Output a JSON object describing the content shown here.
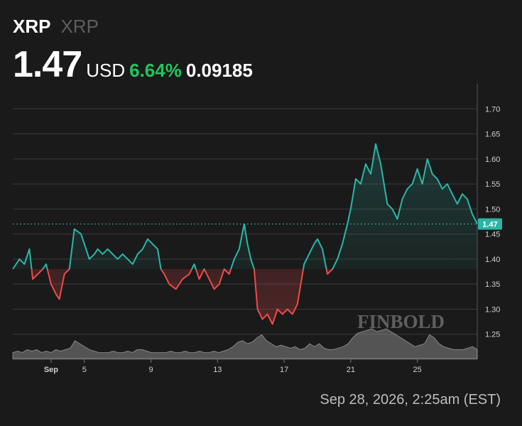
{
  "header": {
    "ticker": "XRP",
    "ticker_sub": "XRP",
    "price": "1.47",
    "currency": "USD",
    "change_pct": "6.64%",
    "change_abs": "0.09185"
  },
  "footer": {
    "timestamp": "Sep 28, 2026, 2:25am (EST)"
  },
  "watermark": {
    "text": "FINBOLD"
  },
  "colors": {
    "background": "#1a1a1a",
    "up": "#2bb5a8",
    "down": "#ef4a4a",
    "grid": "#3a3a3a",
    "volume": "#9b9b9b",
    "label_bg": "#2bb5a8"
  },
  "chart_data": {
    "type": "line",
    "title": "",
    "xlabel": "",
    "ylabel": "",
    "last_price_label": "1.47",
    "base_value": 1.38,
    "ylim": [
      1.2,
      1.75
    ],
    "y_ticks": [
      1.25,
      1.3,
      1.35,
      1.4,
      1.45,
      1.5,
      1.55,
      1.6,
      1.65,
      1.7
    ],
    "y_tick_labels": [
      "1.25",
      "1.30",
      "1.35",
      "1.40",
      "1.45",
      "1.50",
      "1.55",
      "1.60",
      "1.65",
      "1.70"
    ],
    "xlim": [
      0.7,
      28.6
    ],
    "x_ticks": [
      3,
      5,
      9,
      13,
      17,
      21,
      25
    ],
    "x_tick_labels": [
      "Sep",
      "5",
      "9",
      "13",
      "17",
      "21",
      "25"
    ],
    "series": [
      {
        "x": [
          0.7,
          1.1,
          1.4,
          1.7,
          1.9,
          2.2,
          2.5,
          2.7,
          3.0,
          3.3,
          3.5,
          3.8,
          4.1,
          4.4,
          4.8,
          5.0,
          5.3,
          5.6,
          5.8,
          6.1,
          6.4,
          6.7,
          7.0,
          7.3,
          7.6,
          7.9,
          8.2,
          8.5,
          8.8,
          9.1,
          9.4,
          9.6,
          9.8,
          10.1,
          10.5,
          10.9,
          11.3,
          11.6,
          11.9,
          12.2,
          12.5,
          12.8,
          13.1,
          13.4,
          13.7,
          14.0,
          14.3,
          14.6,
          14.8,
          15.0,
          15.2,
          15.4,
          15.7,
          16.0,
          16.3,
          16.6,
          16.9,
          17.2,
          17.5,
          17.8,
          18.0,
          18.2,
          18.5,
          18.8,
          19.0,
          19.3,
          19.6,
          19.9,
          20.2,
          20.5,
          20.8,
          21.0,
          21.3,
          21.6,
          21.9,
          22.2,
          22.5,
          22.8,
          23.0,
          23.2,
          23.5,
          23.8,
          24.1,
          24.4,
          24.7,
          25.0,
          25.3,
          25.6,
          25.9,
          26.2,
          26.5,
          26.8,
          27.1,
          27.4,
          27.7,
          28.0,
          28.3,
          28.6
        ],
        "y": [
          1.38,
          1.4,
          1.39,
          1.42,
          1.36,
          1.37,
          1.38,
          1.39,
          1.35,
          1.33,
          1.32,
          1.37,
          1.38,
          1.46,
          1.45,
          1.43,
          1.4,
          1.41,
          1.42,
          1.41,
          1.42,
          1.41,
          1.4,
          1.41,
          1.4,
          1.39,
          1.41,
          1.42,
          1.44,
          1.43,
          1.42,
          1.38,
          1.37,
          1.35,
          1.34,
          1.36,
          1.37,
          1.39,
          1.36,
          1.38,
          1.36,
          1.34,
          1.35,
          1.38,
          1.37,
          1.4,
          1.42,
          1.47,
          1.43,
          1.4,
          1.38,
          1.3,
          1.28,
          1.29,
          1.27,
          1.3,
          1.29,
          1.3,
          1.29,
          1.31,
          1.35,
          1.39,
          1.41,
          1.43,
          1.44,
          1.42,
          1.37,
          1.38,
          1.4,
          1.43,
          1.47,
          1.5,
          1.56,
          1.55,
          1.59,
          1.57,
          1.63,
          1.59,
          1.55,
          1.51,
          1.5,
          1.48,
          1.52,
          1.54,
          1.55,
          1.58,
          1.55,
          1.6,
          1.57,
          1.56,
          1.54,
          1.55,
          1.53,
          1.51,
          1.53,
          1.52,
          1.49,
          1.47
        ]
      }
    ],
    "volume": [
      2,
      2.5,
      2,
      3,
      2.5,
      3,
      2,
      2.5,
      2,
      3,
      2.5,
      3,
      3.5,
      6,
      5,
      4,
      3,
      2.5,
      2,
      2,
      2,
      2.5,
      2,
      2,
      2.5,
      2,
      3,
      3,
      2.5,
      2,
      2,
      2,
      2,
      2.5,
      2,
      2,
      2.5,
      2,
      2,
      2.5,
      2,
      2,
      2.5,
      2,
      2.5,
      3,
      4,
      5.5,
      6,
      5,
      5.5,
      7,
      8,
      6,
      5,
      4,
      4.5,
      4,
      3.5,
      4,
      3,
      3.5,
      5,
      4,
      5,
      3.5,
      3,
      3,
      3.5,
      4,
      5,
      7,
      8.5,
      9,
      9.5,
      10,
      9,
      9.5,
      10,
      9,
      8,
      7,
      6,
      5,
      4,
      4.5,
      5,
      8,
      7,
      5,
      4,
      3.5,
      3,
      3,
      3,
      3.5,
      4,
      3
    ]
  }
}
